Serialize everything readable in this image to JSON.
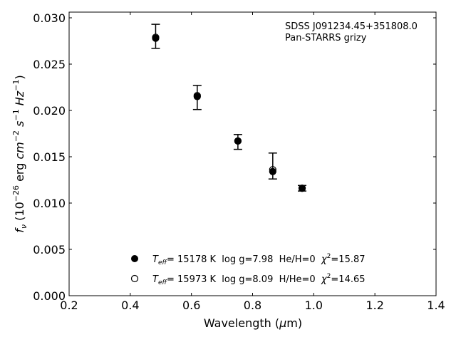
{
  "chart_data": {
    "type": "scatter",
    "title": "",
    "xlabel": "Wavelength (μm)",
    "ylabel": "f_ν (10^-26 erg cm^-2 s^-1 Hz^-1)",
    "xlim": [
      0.2,
      1.4
    ],
    "ylim": [
      0.0,
      0.0306
    ],
    "x_ticks": [
      0.2,
      0.4,
      0.6,
      0.8,
      1.0,
      1.2,
      1.4
    ],
    "y_ticks": [
      0.0,
      0.005,
      0.01,
      0.015,
      0.02,
      0.025,
      0.03
    ],
    "x_tick_labels": [
      "0.2",
      "0.4",
      "0.6",
      "0.8",
      "1.0",
      "1.2",
      "1.4"
    ],
    "y_tick_labels": [
      "0.000",
      "0.005",
      "0.010",
      "0.015",
      "0.020",
      "0.025",
      "0.030"
    ],
    "grid": false,
    "annotation": [
      "SDSS J091234.45+351808.0",
      "Pan-STARRS grizy"
    ],
    "observed": [
      {
        "band": "g",
        "x": 0.483,
        "y": 0.028,
        "yerr": 0.0013
      },
      {
        "band": "r",
        "x": 0.619,
        "y": 0.0214,
        "yerr": 0.0013
      },
      {
        "band": "i",
        "x": 0.752,
        "y": 0.0166,
        "yerr": 0.0008
      },
      {
        "band": "z",
        "x": 0.866,
        "y": 0.014,
        "yerr": 0.0014
      },
      {
        "band": "y",
        "x": 0.962,
        "y": 0.0116,
        "yerr": 0.0003
      }
    ],
    "series": [
      {
        "marker": "filled-circle",
        "label_parts": {
          "teff": "T",
          "teff_sub": "eff",
          "rest": "= 15178 K  log g=7.98  He/H=0  ",
          "chi": "χ",
          "chi_sup": "2",
          "chi_rest": "=15.87"
        },
        "x": [
          0.483,
          0.619,
          0.752,
          0.866,
          0.962
        ],
        "y": [
          0.0278,
          0.0215,
          0.0167,
          0.0134,
          0.0116
        ]
      },
      {
        "marker": "open-circle",
        "label_parts": {
          "teff": "T",
          "teff_sub": "eff",
          "rest": "= 15973 K  log g=8.09  H/He=0  ",
          "chi": "χ",
          "chi_sup": "2",
          "chi_rest": "=14.65"
        },
        "x": [
          0.483,
          0.619,
          0.752,
          0.866,
          0.962
        ],
        "y": [
          0.0279,
          0.0216,
          0.0167,
          0.0136,
          0.0116
        ]
      }
    ]
  }
}
